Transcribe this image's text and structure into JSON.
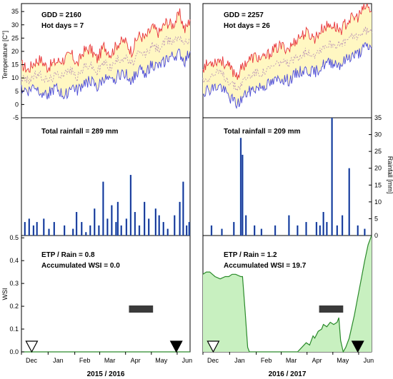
{
  "colors": {
    "tmax": "#e8343a",
    "tmin": "#4a4ad8",
    "tmean": "#b48ab4",
    "temp_band": "#fff7c2",
    "rain_bar": "#1a2a8c",
    "rain_fill": "#4aa0e8",
    "wsi_fill": "#c8f0c0",
    "wsi_line": "#2a8a2a",
    "critical_period": "#3a3a3a"
  },
  "icons": {
    "sowing": "open-down-triangle-icon",
    "harvest": "filled-down-triangle-icon"
  },
  "chart_data": [
    {
      "type": "line",
      "panel": "temperature-2015-2016",
      "ylabel": "Temperature [C°]",
      "ylim": [
        -5,
        38
      ],
      "yticks": [
        "-5",
        "0",
        "5",
        "10",
        "15",
        "20",
        "25",
        "30",
        "35"
      ],
      "annotations": [
        "GDD = 2160",
        "Hot days = 7"
      ],
      "series": [
        {
          "points": [
            [
              0,
              15
            ],
            [
              8,
              13
            ],
            [
              15,
              16
            ],
            [
              22,
              17
            ],
            [
              30,
              14
            ],
            [
              40,
              16
            ],
            [
              50,
              17
            ],
            [
              58,
              19
            ],
            [
              65,
              15
            ],
            [
              72,
              20
            ],
            [
              80,
              21
            ],
            [
              88,
              17
            ],
            [
              96,
              22
            ],
            [
              104,
              19
            ],
            [
              112,
              23
            ],
            [
              120,
              24
            ],
            [
              128,
              20
            ],
            [
              136,
              26
            ],
            [
              144,
              25
            ],
            [
              152,
              29
            ],
            [
              160,
              27
            ],
            [
              168,
              31
            ],
            [
              176,
              30
            ],
            [
              184,
              34
            ],
            [
              190,
              28
            ],
            [
              196,
              32
            ]
          ]
        },
        {
          "points": [
            [
              0,
              10
            ],
            [
              8,
              9
            ],
            [
              15,
              11
            ],
            [
              22,
              11
            ],
            [
              30,
              9
            ],
            [
              40,
              11
            ],
            [
              50,
              12
            ],
            [
              58,
              13
            ],
            [
              65,
              10
            ],
            [
              72,
              14
            ],
            [
              80,
              15
            ],
            [
              88,
              12
            ],
            [
              96,
              16
            ],
            [
              104,
              14
            ],
            [
              112,
              17
            ],
            [
              120,
              18
            ],
            [
              128,
              15
            ],
            [
              136,
              19
            ],
            [
              144,
              19
            ],
            [
              152,
              22
            ],
            [
              160,
              21
            ],
            [
              168,
              24
            ],
            [
              176,
              24
            ],
            [
              184,
              26
            ],
            [
              190,
              23
            ],
            [
              196,
              25
            ]
          ]
        },
        {
          "points": [
            [
              0,
              6
            ],
            [
              8,
              5
            ],
            [
              15,
              7
            ],
            [
              22,
              5
            ],
            [
              30,
              4
            ],
            [
              40,
              6
            ],
            [
              50,
              3
            ],
            [
              58,
              7
            ],
            [
              65,
              5
            ],
            [
              72,
              8
            ],
            [
              80,
              9
            ],
            [
              88,
              6
            ],
            [
              96,
              10
            ],
            [
              104,
              8
            ],
            [
              112,
              11
            ],
            [
              120,
              12
            ],
            [
              128,
              9
            ],
            [
              136,
              13
            ],
            [
              144,
              12
            ],
            [
              152,
              15
            ],
            [
              160,
              14
            ],
            [
              168,
              17
            ],
            [
              176,
              18
            ],
            [
              184,
              19
            ],
            [
              190,
              16
            ],
            [
              196,
              20
            ]
          ]
        }
      ]
    },
    {
      "type": "line",
      "panel": "temperature-2016-2017",
      "annotations": [
        "GDD = 2257",
        "Hot days = 26"
      ],
      "series": [
        {
          "points": [
            [
              0,
              14
            ],
            [
              10,
              16
            ],
            [
              20,
              17
            ],
            [
              30,
              14
            ],
            [
              40,
              11
            ],
            [
              50,
              16
            ],
            [
              60,
              18
            ],
            [
              70,
              17
            ],
            [
              80,
              20
            ],
            [
              90,
              22
            ],
            [
              100,
              21
            ],
            [
              110,
              25
            ],
            [
              120,
              27
            ],
            [
              130,
              25
            ],
            [
              140,
              29
            ],
            [
              150,
              30
            ],
            [
              160,
              28
            ],
            [
              170,
              32
            ],
            [
              180,
              33
            ],
            [
              190,
              37
            ],
            [
              196,
              35
            ]
          ]
        },
        {
          "points": [
            [
              0,
              9
            ],
            [
              10,
              11
            ],
            [
              20,
              12
            ],
            [
              30,
              9
            ],
            [
              40,
              6
            ],
            [
              50,
              10
            ],
            [
              60,
              12
            ],
            [
              70,
              12
            ],
            [
              80,
              14
            ],
            [
              90,
              16
            ],
            [
              100,
              15
            ],
            [
              110,
              18
            ],
            [
              120,
              20
            ],
            [
              130,
              19
            ],
            [
              140,
              22
            ],
            [
              150,
              23
            ],
            [
              160,
              22
            ],
            [
              170,
              25
            ],
            [
              180,
              26
            ],
            [
              190,
              28
            ],
            [
              196,
              27
            ]
          ]
        },
        {
          "points": [
            [
              0,
              5
            ],
            [
              10,
              6
            ],
            [
              20,
              7
            ],
            [
              30,
              3
            ],
            [
              40,
              0
            ],
            [
              50,
              4
            ],
            [
              60,
              6
            ],
            [
              70,
              7
            ],
            [
              80,
              8
            ],
            [
              90,
              10
            ],
            [
              100,
              9
            ],
            [
              110,
              12
            ],
            [
              120,
              13
            ],
            [
              130,
              12
            ],
            [
              140,
              15
            ],
            [
              150,
              16
            ],
            [
              160,
              15
            ],
            [
              170,
              18
            ],
            [
              180,
              19
            ],
            [
              190,
              22
            ],
            [
              196,
              21
            ]
          ]
        }
      ]
    },
    {
      "type": "bar",
      "panel": "rainfall-2015-2016",
      "ylim": [
        0,
        35
      ],
      "annotations": [
        "Total rainfall = 289 mm"
      ],
      "x": [
        4,
        9,
        14,
        18,
        26,
        32,
        38,
        50,
        60,
        64,
        70,
        75,
        80,
        85,
        90,
        95,
        100,
        105,
        110,
        112,
        116,
        122,
        127,
        132,
        137,
        143,
        148,
        156,
        160,
        165,
        170,
        178,
        184,
        188,
        192,
        195
      ],
      "values": [
        4,
        5,
        3,
        4,
        5,
        2,
        4,
        3,
        2,
        7,
        4,
        1,
        3,
        8,
        3,
        16,
        5,
        9,
        4,
        10,
        3,
        5,
        18,
        7,
        3,
        10,
        5,
        8,
        6,
        4,
        2,
        6,
        10,
        16,
        3,
        4
      ]
    },
    {
      "type": "bar",
      "panel": "rainfall-2016-2017",
      "ylabel": "Rainfall [mm]",
      "ylim": [
        0,
        35
      ],
      "yticks": [
        "0",
        "5",
        "10",
        "15",
        "20",
        "25",
        "30",
        "35"
      ],
      "annotations": [
        "Total rainfall = 209 mm"
      ],
      "x": [
        10,
        22,
        36,
        44,
        46,
        50,
        60,
        68,
        84,
        100,
        110,
        120,
        132,
        136,
        140,
        144,
        150,
        156,
        162,
        170,
        180,
        188
      ],
      "values": [
        3,
        2,
        4,
        29,
        24,
        6,
        3,
        2,
        3,
        6,
        3,
        4,
        4,
        3,
        7,
        4,
        35,
        3,
        6,
        20,
        3,
        2
      ]
    },
    {
      "type": "area",
      "panel": "wsi-2015-2016",
      "ylabel": "WSI",
      "ylim": [
        0,
        0.5
      ],
      "yticks": [
        "0.0",
        "0.1",
        "0.2",
        "0.3",
        "0.4",
        "0.5"
      ],
      "annotations": [
        "ETP / Rain = 0.8",
        "Accumulated WSI = 0.0"
      ],
      "points": [
        [
          0,
          0
        ],
        [
          196,
          0
        ]
      ],
      "critical_period": [
        125,
        153
      ],
      "sowing_x": 12,
      "harvest_x": 180
    },
    {
      "type": "area",
      "panel": "wsi-2016-2017",
      "annotations": [
        "ETP / Rain = 1.2",
        "Accumulated WSI = 19.7"
      ],
      "points": [
        [
          0,
          0.34
        ],
        [
          4,
          0.35
        ],
        [
          8,
          0.35
        ],
        [
          14,
          0.33
        ],
        [
          20,
          0.32
        ],
        [
          26,
          0.33
        ],
        [
          30,
          0.33
        ],
        [
          34,
          0.34
        ],
        [
          38,
          0.34
        ],
        [
          44,
          0.33
        ],
        [
          46,
          0.33
        ],
        [
          49,
          0.18
        ],
        [
          52,
          0.02
        ],
        [
          54,
          0
        ],
        [
          110,
          0
        ],
        [
          115,
          0.02
        ],
        [
          120,
          0.04
        ],
        [
          124,
          0.03
        ],
        [
          128,
          0.07
        ],
        [
          130,
          0.06
        ],
        [
          134,
          0.09
        ],
        [
          138,
          0.1
        ],
        [
          140,
          0.12
        ],
        [
          144,
          0.11
        ],
        [
          148,
          0.13
        ],
        [
          152,
          0.12
        ],
        [
          156,
          0.13
        ],
        [
          158,
          0.15
        ],
        [
          160,
          0.05
        ],
        [
          163,
          0
        ],
        [
          166,
          0.02
        ],
        [
          170,
          0.06
        ],
        [
          176,
          0.16
        ],
        [
          180,
          0.24
        ],
        [
          184,
          0.32
        ],
        [
          188,
          0.4
        ],
        [
          192,
          0.47
        ],
        [
          196,
          0.51
        ]
      ],
      "critical_period": [
        135,
        163
      ],
      "sowing_x": 12,
      "harvest_x": 180
    }
  ],
  "x_axis": {
    "tick_positions": [
      0,
      31,
      62,
      91,
      121,
      151,
      181
    ],
    "months": [
      "Dec",
      "Jan",
      "Feb",
      "Mar",
      "Apr",
      "May",
      "Jun"
    ],
    "season_labels": [
      "2015 / 2016",
      "2016 / 2017"
    ]
  }
}
